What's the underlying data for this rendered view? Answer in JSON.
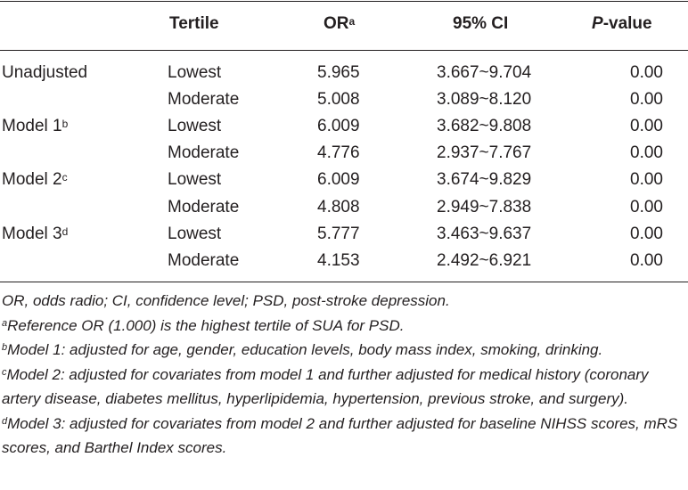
{
  "header": {
    "tertile": "Tertile",
    "or": "OR",
    "or_sup": "a",
    "ci": "95% CI",
    "p_italic": "P",
    "p_rest": "-value"
  },
  "rows": [
    {
      "model": "Unadjusted",
      "model_sup": "",
      "tertile": "Lowest",
      "or": "5.965",
      "ci": "3.667~9.704",
      "p": "0.00"
    },
    {
      "model": "",
      "model_sup": "",
      "tertile": "Moderate",
      "or": "5.008",
      "ci": "3.089~8.120",
      "p": "0.00"
    },
    {
      "model": "Model 1",
      "model_sup": "b",
      "tertile": "Lowest",
      "or": "6.009",
      "ci": "3.682~9.808",
      "p": "0.00"
    },
    {
      "model": "",
      "model_sup": "",
      "tertile": "Moderate",
      "or": "4.776",
      "ci": "2.937~7.767",
      "p": "0.00"
    },
    {
      "model": "Model 2",
      "model_sup": "c",
      "tertile": "Lowest",
      "or": "6.009",
      "ci": "3.674~9.829",
      "p": "0.00"
    },
    {
      "model": "",
      "model_sup": "",
      "tertile": "Moderate",
      "or": "4.808",
      "ci": "2.949~7.838",
      "p": "0.00"
    },
    {
      "model": "Model 3",
      "model_sup": "d",
      "tertile": "Lowest",
      "or": "5.777",
      "ci": "3.463~9.637",
      "p": "0.00"
    },
    {
      "model": "",
      "model_sup": "",
      "tertile": "Moderate",
      "or": "4.153",
      "ci": "2.492~6.921",
      "p": "0.00"
    }
  ],
  "footnotes": {
    "abbrev": "OR, odds radio; CI, confidence level; PSD, post-stroke depression.",
    "a_mark": "a",
    "a_text": "Reference OR (1.000) is the highest tertile of SUA for PSD.",
    "b_mark": "b",
    "b_text": "Model 1: adjusted for age, gender, education levels, body mass index, smoking, drinking.",
    "c_mark": "c",
    "c_text": "Model 2: adjusted for covariates from model 1 and further adjusted for medical history (coronary artery disease, diabetes mellitus, hyperlipidemia, hypertension, previous stroke, and surgery).",
    "d_mark": "d",
    "d_text": "Model 3: adjusted for covariates from model 2 and further adjusted for baseline NIHSS scores, mRS scores, and Barthel Index scores."
  }
}
